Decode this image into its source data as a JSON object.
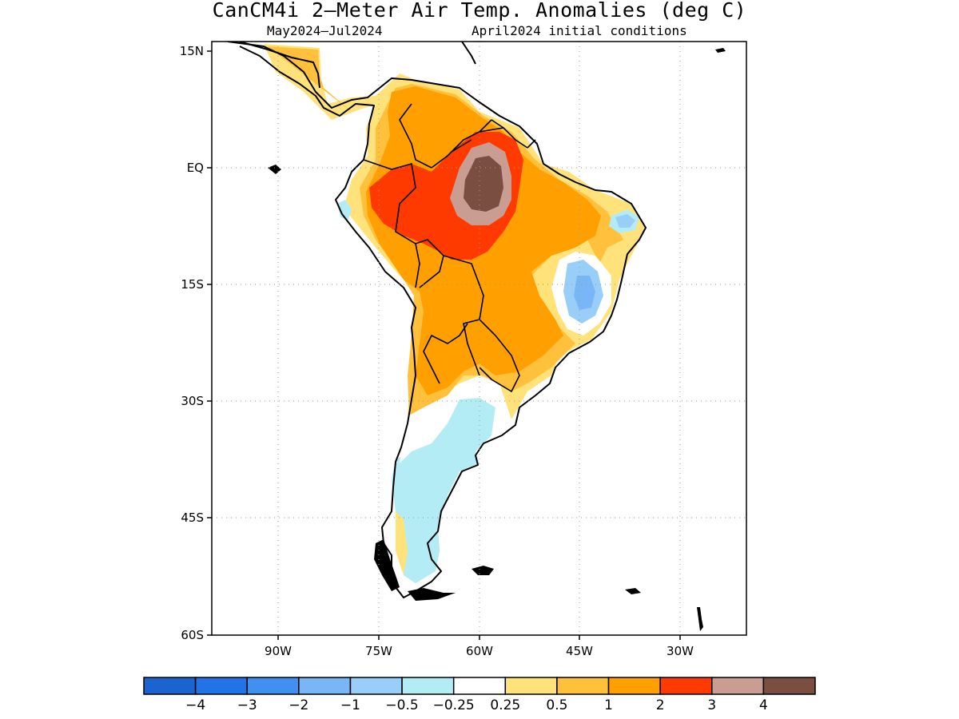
{
  "title": "CanCM4i 2—Meter Air Temp. Anomalies (deg C)",
  "subtitle_left": "May2024—Jul2024",
  "subtitle_right": "April2024 initial conditions",
  "lat_labels": [
    "15N",
    "EQ",
    "15S",
    "30S",
    "45S",
    "60S"
  ],
  "lon_labels": [
    "90W",
    "75W",
    "60W",
    "45W",
    "30W"
  ],
  "colorbar": {
    "labels": [
      "−4",
      "−3",
      "−2",
      "−1",
      "−0.5",
      "−0.25",
      "0.25",
      "0.5",
      "1",
      "2",
      "3",
      "4"
    ],
    "colors": [
      "#1a64d2",
      "#2273e8",
      "#3f90f0",
      "#78b6f5",
      "#98cef8",
      "#b4ecf6",
      "#ffffff",
      "#ffe27a",
      "#ffc13c",
      "#ffa000",
      "#ff3a00",
      "#c99d92",
      "#7b4e42"
    ]
  },
  "anomaly_colors": {
    "warm_1": "#ffe27a",
    "warm_2": "#ffc13c",
    "warm_3": "#ffa000",
    "warm_4": "#ff3a00",
    "warm_5": "#c99d92",
    "warm_6": "#7b4e42",
    "cool_1": "#b4ecf6",
    "cool_2": "#98cef8",
    "cool_3": "#78b6f5"
  }
}
